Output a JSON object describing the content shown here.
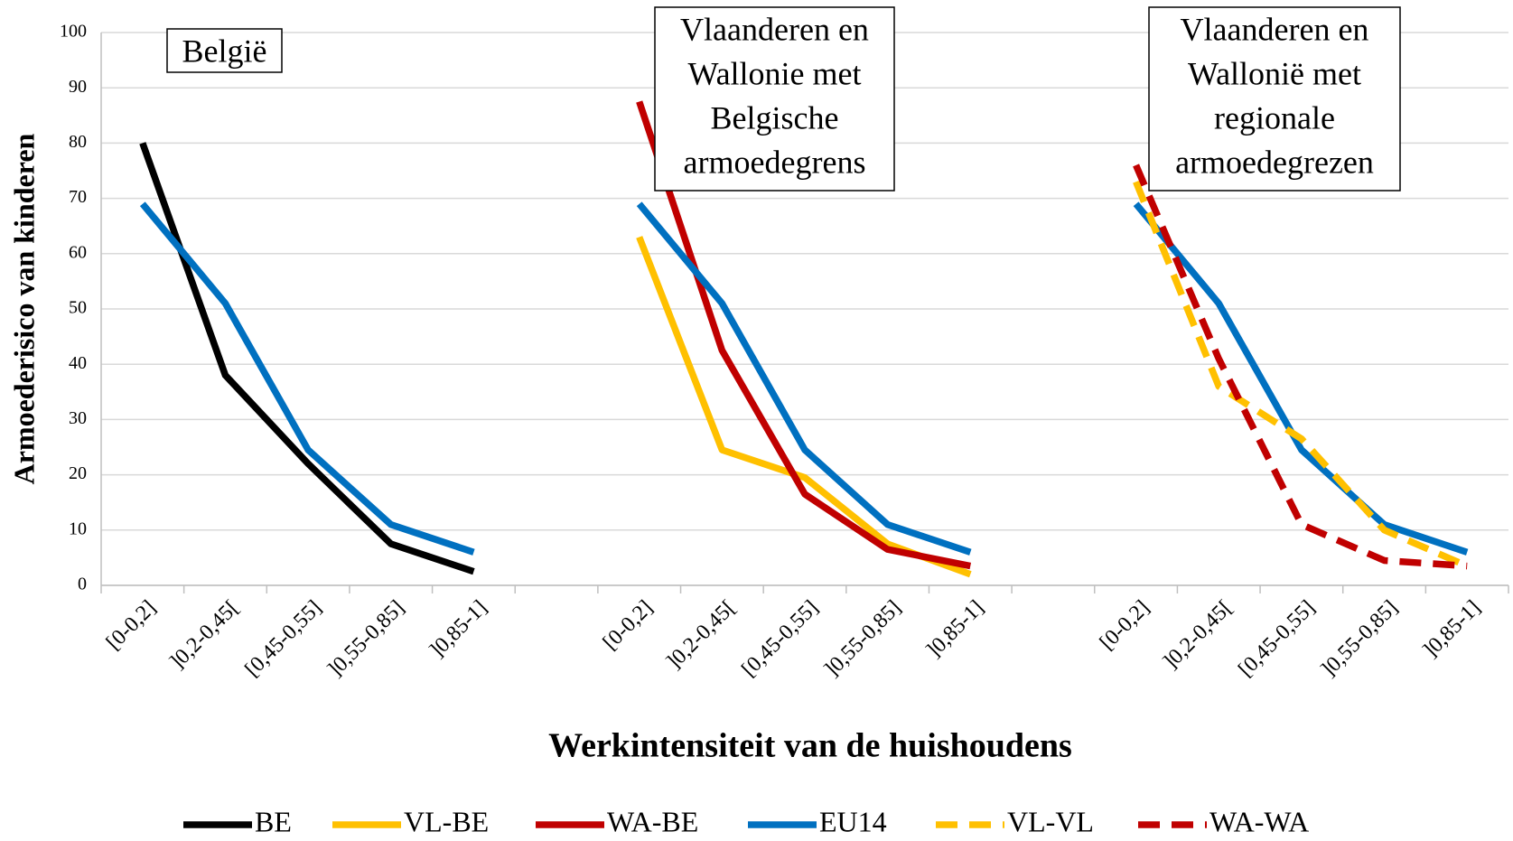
{
  "chart_data": {
    "type": "line",
    "x_label": "Werkintensiteit van de huishoudens",
    "y_label": "Armoederisico van kinderen",
    "categories": [
      "[0-0,2]",
      "]0,2-0,45[",
      "[0,45-0,55]",
      "]0,55-0,85]",
      "]0,85-1]",
      null,
      "[0-0,2]",
      "]0,2-0,45[",
      "[0,45-0,55]",
      "]0,55-0,85]",
      "]0,85-1]",
      null,
      "[0-0,2]",
      "]0,2-0,45[",
      "[0,45-0,55]",
      "]0,55-0,85]",
      "]0,85-1]"
    ],
    "series": [
      {
        "name": "BE",
        "color": "#000000",
        "dashed": false,
        "values": [
          80,
          38,
          22,
          7.5,
          2.5,
          null,
          null,
          null,
          null,
          null,
          null,
          null,
          null,
          null,
          null,
          null,
          null
        ]
      },
      {
        "name": "VL-BE",
        "color": "#ffc000",
        "dashed": false,
        "values": [
          null,
          null,
          null,
          null,
          null,
          null,
          63,
          24.5,
          19.5,
          7.5,
          2,
          null,
          null,
          null,
          null,
          null,
          null
        ]
      },
      {
        "name": "WA-BE",
        "color": "#c00000",
        "dashed": false,
        "values": [
          null,
          null,
          null,
          null,
          null,
          null,
          87.5,
          42.5,
          16.5,
          6.5,
          3.5,
          null,
          null,
          null,
          null,
          null,
          null
        ]
      },
      {
        "name": "EU14",
        "color": "#0070c0",
        "dashed": false,
        "values": [
          69,
          51,
          24.5,
          11,
          6,
          null,
          69,
          51,
          24.5,
          11,
          6,
          null,
          69,
          51,
          24.5,
          11,
          6
        ]
      },
      {
        "name": "VL-VL",
        "color": "#ffc000",
        "dashed": true,
        "values": [
          null,
          null,
          null,
          null,
          null,
          null,
          null,
          null,
          null,
          null,
          null,
          null,
          73,
          36,
          26.5,
          10,
          3.5
        ]
      },
      {
        "name": "WA-WA",
        "color": "#c00000",
        "dashed": true,
        "values": [
          null,
          null,
          null,
          null,
          null,
          null,
          null,
          null,
          null,
          null,
          null,
          null,
          76,
          41,
          11,
          4.5,
          3.5
        ]
      }
    ],
    "annotations": [
      {
        "lines": [
          "België"
        ]
      },
      {
        "lines": [
          "Vlaanderen en",
          "Wallonie met",
          "Belgische",
          "armoedegrens"
        ]
      },
      {
        "lines": [
          "Vlaanderen en",
          "Wallonië met",
          "regionale",
          "armoedegrezen"
        ]
      }
    ],
    "ylim": [
      0,
      100
    ],
    "yticks": [
      0,
      10,
      20,
      30,
      40,
      50,
      60,
      70,
      80,
      90,
      100
    ],
    "grid": true,
    "legend": "bottom"
  }
}
